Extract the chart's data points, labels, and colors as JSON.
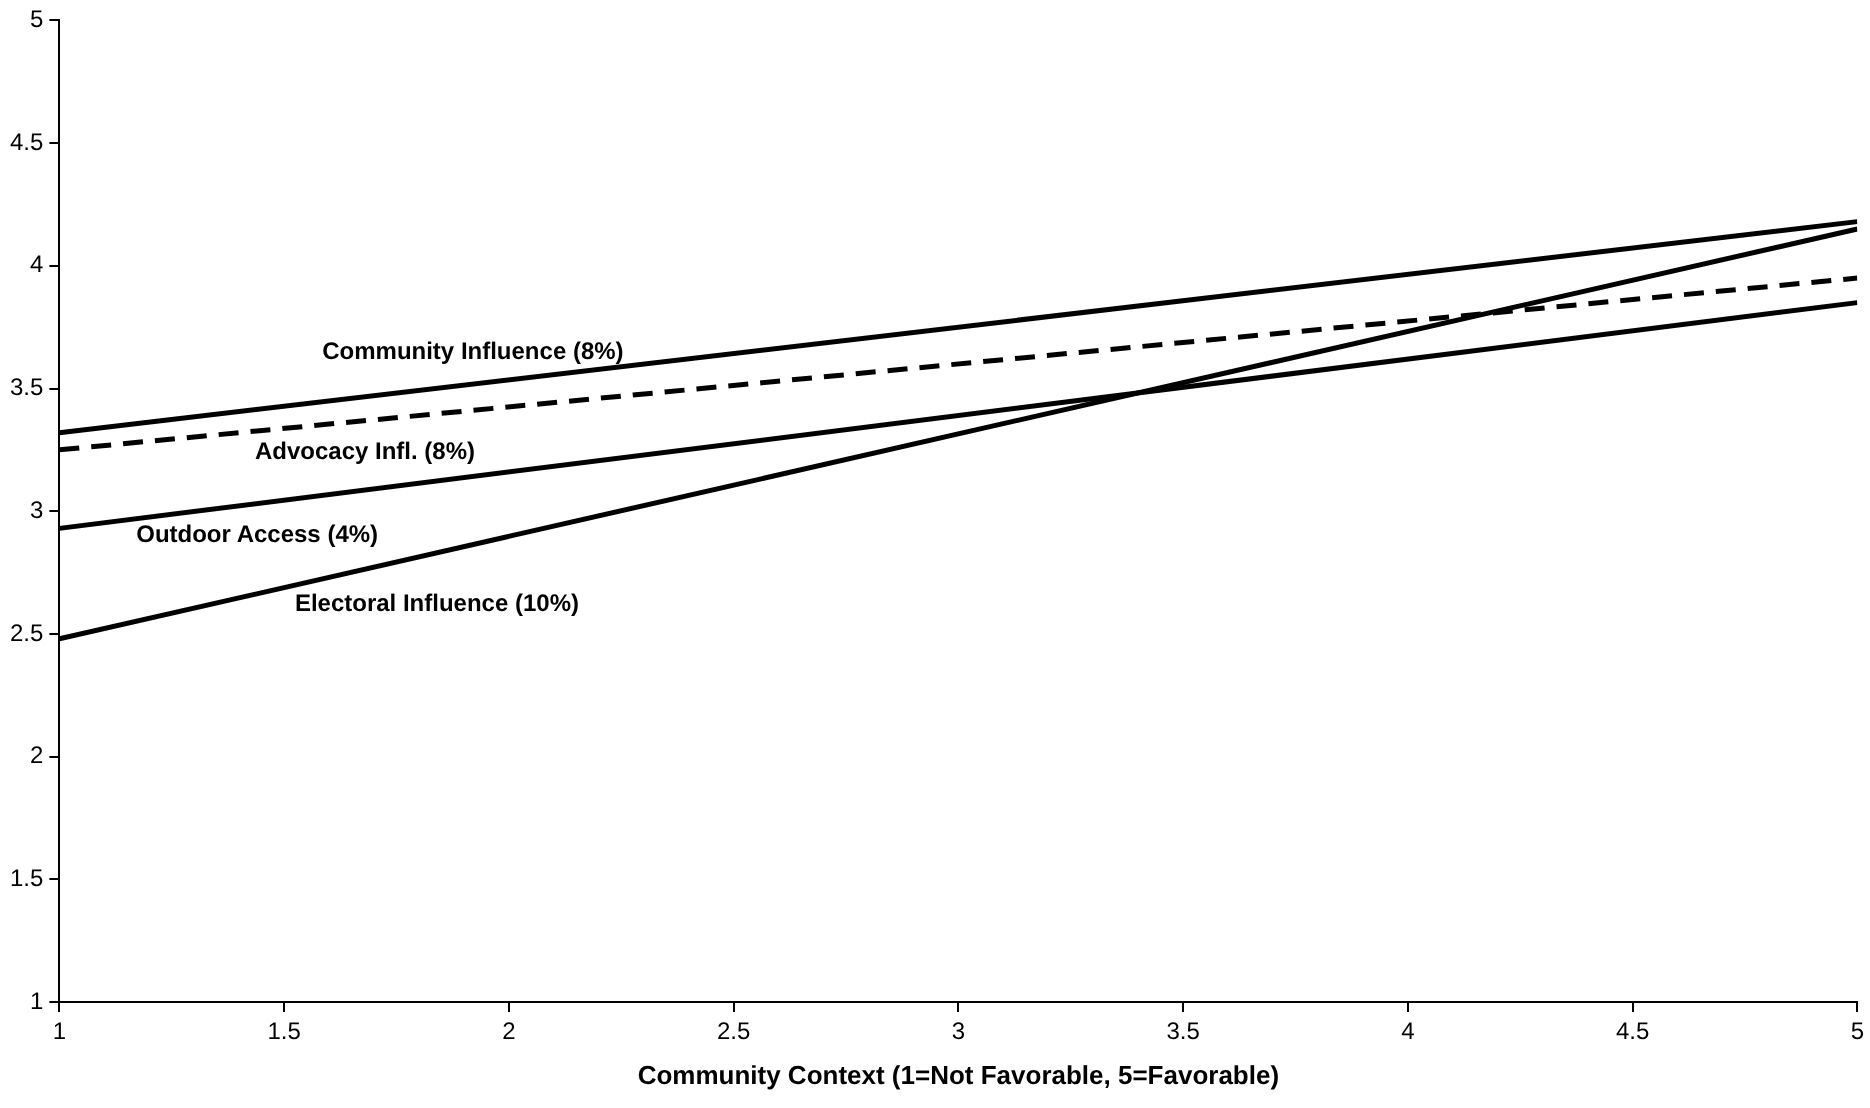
{
  "chart_data": {
    "type": "line",
    "xlabel": "Community Context (1=Not Favorable, 5=Favorable)",
    "x": [
      1,
      5
    ],
    "xlim": [
      1,
      5
    ],
    "xticks": [
      1,
      1.5,
      2,
      2.5,
      3,
      3.5,
      4,
      4.5,
      5
    ],
    "ylim": [
      1,
      5
    ],
    "yticks": [
      1,
      1.5,
      2,
      2.5,
      3,
      3.5,
      4,
      4.5,
      5
    ],
    "grid": false,
    "legend": false,
    "marker": "none",
    "series": [
      {
        "name": "Community Influence (8%)",
        "color": "#000000",
        "values": [
          3.32,
          4.18
        ],
        "line_style": "solid"
      },
      {
        "name": "Advocacy Infl. (8%)",
        "color": "#000000",
        "values": [
          3.25,
          3.95
        ],
        "line_style": "dashed"
      },
      {
        "name": "Outdoor Access (4%)",
        "color": "#000000",
        "values": [
          2.93,
          3.85
        ],
        "line_style": "solid"
      },
      {
        "name": "Electoral Influence (10%)",
        "color": "#000000",
        "values": [
          2.48,
          4.15
        ],
        "line_style": "solid"
      }
    ]
  }
}
